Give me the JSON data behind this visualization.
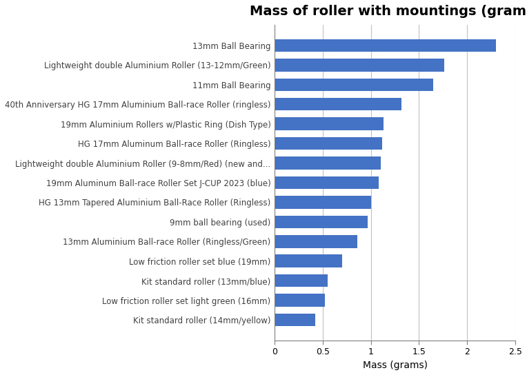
{
  "title": "Mass of roller with mountings (grams)",
  "xlabel": "Mass (grams)",
  "categories": [
    "Kit standard roller (14mm/yellow)",
    "Low friction roller set light green (16mm)",
    "Kit standard roller (13mm/blue)",
    "Low friction roller set blue (19mm)",
    "13mm Aluminium Ball-race Roller (Ringless/Green)",
    "9mm ball bearing (used)",
    "HG 13mm Tapered Aluminium Ball-Race Roller (Ringless)",
    "19mm Aluminum Ball-race Roller Set J-CUP 2023 (blue)",
    "Lightweight double Aluminium Roller (9-8mm/Red) (new and...",
    "HG 17mm Aluminum Ball-race Roller (Ringless)",
    "19mm Aluminium Rollers w/Plastic Ring (Dish Type)",
    "40th Anniversary HG 17mm Aluminium Ball-race Roller (ringless)",
    "11mm Ball Bearing",
    "Lightweight double Aluminium Roller (13-12mm/Green)",
    "13mm Ball Bearing"
  ],
  "values": [
    0.42,
    0.52,
    0.55,
    0.7,
    0.86,
    0.97,
    1.0,
    1.08,
    1.1,
    1.12,
    1.13,
    1.32,
    1.65,
    1.76,
    2.3
  ],
  "bar_color": "#4472C4",
  "xlim": [
    0,
    2.5
  ],
  "xticks": [
    0,
    0.5,
    1.0,
    1.5,
    2.0,
    2.5
  ],
  "xtick_labels": [
    "0",
    "0.5",
    "1",
    "1.5",
    "2",
    "2.5"
  ],
  "background_color": "#ffffff",
  "title_fontsize": 14,
  "label_fontsize": 8.5,
  "tick_fontsize": 9,
  "xlabel_fontsize": 10,
  "label_color": "#404040",
  "grid_color": "#c0c0c0"
}
